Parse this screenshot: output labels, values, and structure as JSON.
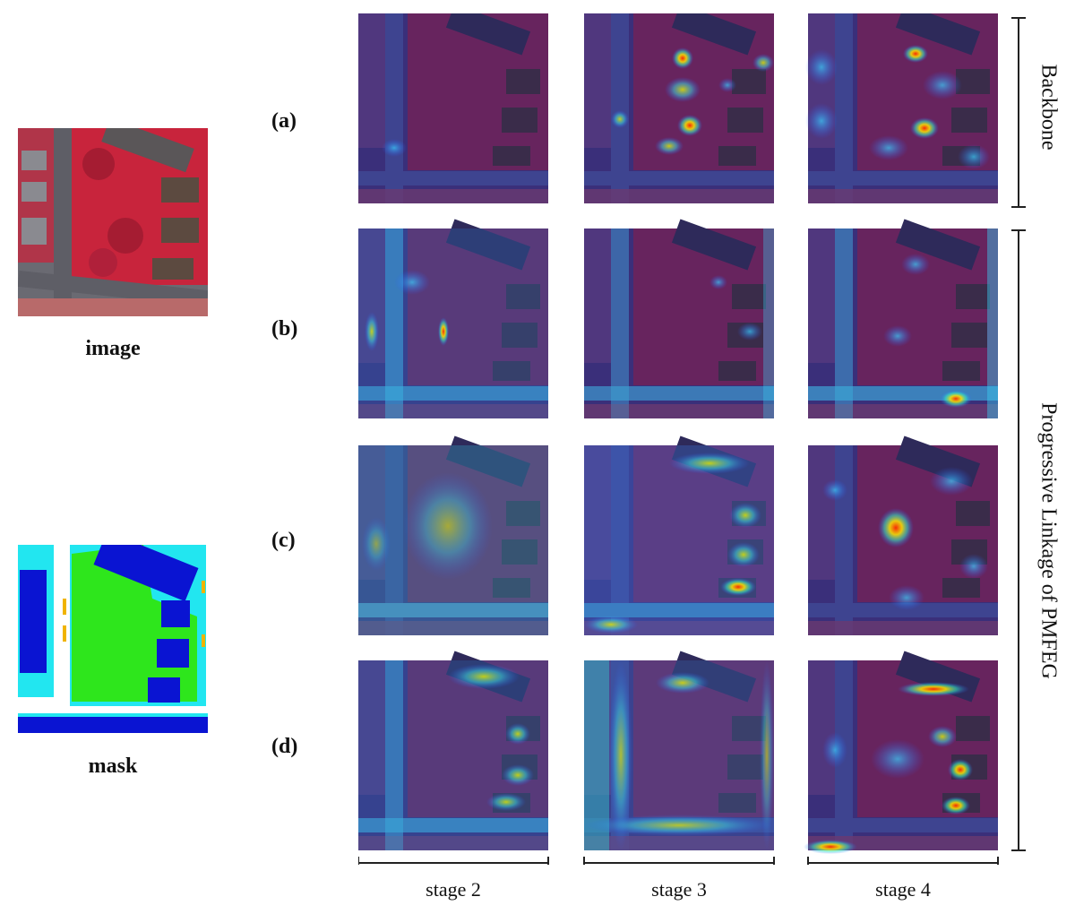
{
  "left_labels": {
    "image": "image",
    "mask": "mask"
  },
  "rows": [
    {
      "label": "(a)"
    },
    {
      "label": "(b)"
    },
    {
      "label": "(c)"
    },
    {
      "label": "(d)"
    }
  ],
  "columns": [
    {
      "label": "stage 2"
    },
    {
      "label": "stage 3"
    },
    {
      "label": "stage 4"
    }
  ],
  "side_labels": {
    "backbone": "Backbone",
    "pmfeg": "Progressive Linkage of PMFEG"
  },
  "colors": {
    "ir_red": "#c8243c",
    "road": "#6a6a72",
    "building_mask": "#0a14d2",
    "tree_mask": "#2ee61c",
    "lowveg_mask": "#22e6f0",
    "car_mask": "#f0b400",
    "heatmap_base": "#3a2f7a"
  }
}
